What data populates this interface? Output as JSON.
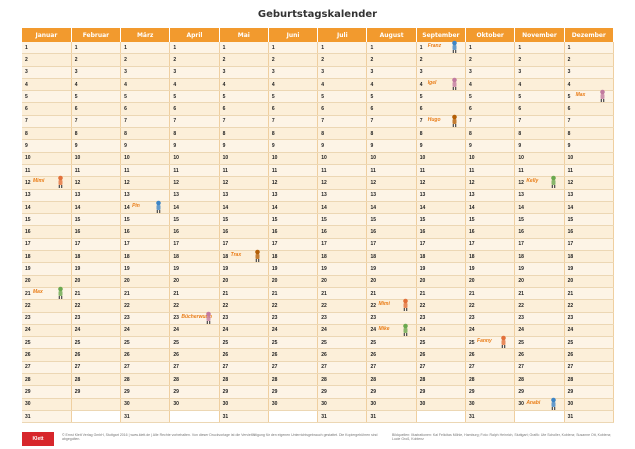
{
  "title": "Geburtstagskalender",
  "months": [
    "Januar",
    "Februar",
    "März",
    "April",
    "Mai",
    "Juni",
    "Juli",
    "August",
    "September",
    "Oktober",
    "November",
    "Dezember"
  ],
  "days_in_month": [
    31,
    29,
    31,
    30,
    31,
    30,
    31,
    31,
    30,
    31,
    30,
    31
  ],
  "birthdays": [
    {
      "month": 0,
      "day": 12,
      "name": "Mimi"
    },
    {
      "month": 0,
      "day": 21,
      "name": "Max"
    },
    {
      "month": 2,
      "day": 14,
      "name": "Pin"
    },
    {
      "month": 3,
      "day": 23,
      "name": "Bücherwurm"
    },
    {
      "month": 4,
      "day": 18,
      "name": "Trax"
    },
    {
      "month": 7,
      "day": 22,
      "name": "Mimi"
    },
    {
      "month": 7,
      "day": 24,
      "name": "Mike"
    },
    {
      "month": 8,
      "day": 1,
      "name": "Franz"
    },
    {
      "month": 8,
      "day": 4,
      "name": "Igel"
    },
    {
      "month": 8,
      "day": 7,
      "name": "Hugo"
    },
    {
      "month": 9,
      "day": 25,
      "name": "Fanny"
    },
    {
      "month": 10,
      "day": 12,
      "name": "Kelly"
    },
    {
      "month": 10,
      "day": 30,
      "name": "Anabi"
    },
    {
      "month": 11,
      "day": 5,
      "name": "Max"
    }
  ],
  "footer": {
    "logo": "Klett",
    "left_text": "© Ernst Klett Verlag GmbH, Stuttgart 2016 | www.klett.de | Alle Rechte vorbehalten. Von dieser Druckvorlage ist die Vervielfältigung für den eigenen Unterrichtsgebrauch gestattet. Die Kopiergebühren sind abgegolten.",
    "right_text": "Bildquellen: Illustrationen: Kai Felicitas Möhle, Hamburg; Foto: Ralph Heinrich, Stuttgart; Grafik: Ute Scholler, Koblenz; Susanne Ott, Koblenz; Lucie Groß, Koblenz"
  }
}
